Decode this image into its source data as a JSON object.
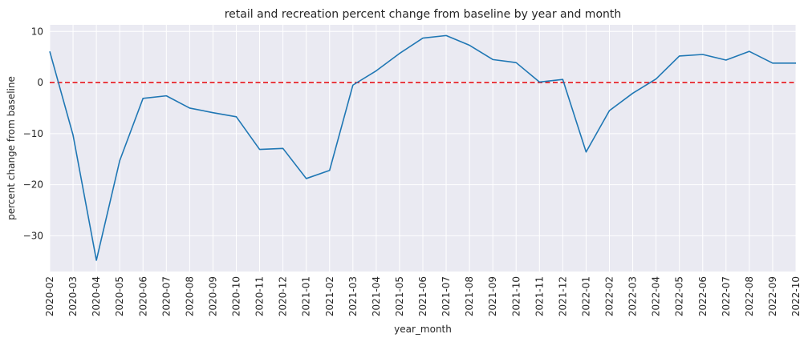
{
  "chart_data": {
    "type": "line",
    "title": "retail and recreation percent change from baseline by year and month",
    "xlabel": "year_month",
    "ylabel": "percent change from baseline",
    "ylim": [
      -37,
      11.3
    ],
    "yticks": [
      10,
      0,
      -10,
      -20,
      -30
    ],
    "grid": true,
    "reference_line": {
      "y": 0,
      "style": "dashed",
      "color": "#e8141a"
    },
    "categories": [
      "2020-02",
      "2020-03",
      "2020-04",
      "2020-05",
      "2020-06",
      "2020-07",
      "2020-08",
      "2020-09",
      "2020-10",
      "2020-11",
      "2020-12",
      "2021-01",
      "2021-02",
      "2021-03",
      "2021-04",
      "2021-05",
      "2021-06",
      "2021-07",
      "2021-08",
      "2021-09",
      "2021-10",
      "2021-11",
      "2021-12",
      "2022-01",
      "2022-02",
      "2022-03",
      "2022-04",
      "2022-05",
      "2022-06",
      "2022-07",
      "2022-08",
      "2022-09",
      "2022-10"
    ],
    "series": [
      {
        "color": "#1f77b4",
        "values": [
          6.1,
          -10.3,
          -34.8,
          -15.3,
          -3.1,
          -2.6,
          -5.0,
          -5.9,
          -6.7,
          -13.1,
          -12.9,
          -18.8,
          -17.2,
          -0.5,
          2.3,
          5.7,
          8.7,
          9.2,
          7.3,
          4.5,
          3.9,
          0.1,
          0.6,
          -13.6,
          -5.5,
          -2.1,
          0.7,
          5.2,
          5.5,
          4.4,
          6.1,
          3.8,
          3.8
        ]
      }
    ]
  }
}
